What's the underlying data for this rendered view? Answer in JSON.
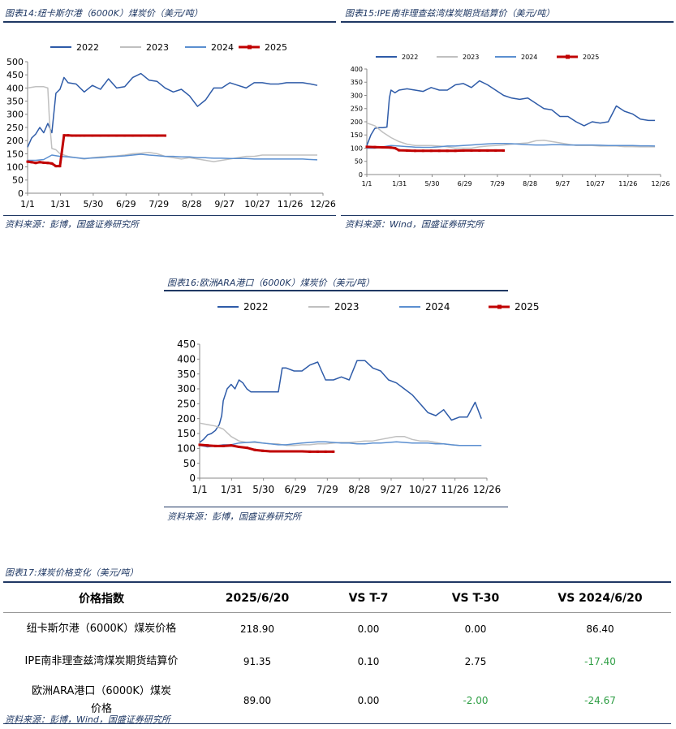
{
  "fig14": {
    "caption": "图表14:纽卡斯尔港（6000K）煤炭价（美元/吨）",
    "source": "资料来源：彭博，国盛证券研究所"
  },
  "fig15": {
    "caption": "图表15:IPE南非理查兹湾煤炭期货结算价（美元/吨）",
    "source": "资料来源：Wind，国盛证券研究所"
  },
  "fig16": {
    "caption": "图表16:欧洲ARA港口（6000K）煤炭价（美元/吨）",
    "source": "资料来源：彭博，国盛证券研究所"
  },
  "fig17": {
    "caption": "图表17:煤炭价格变化（美元/吨）",
    "source": "资料来源：彭博，Wind，国盛证券研究所",
    "headers": [
      "价格指数",
      "2025/6/20",
      "VS T-7",
      "VS T-30",
      "VS 2024/6/20"
    ],
    "rows": [
      {
        "name": "纽卡斯尔港（6000K）煤炭价格",
        "v": "218.90",
        "t7": "0.00",
        "t30": "0.00",
        "y": "86.40"
      },
      {
        "name": "IPE南非理查兹湾煤炭期货结算价",
        "v": "91.35",
        "t7": "0.10",
        "t30": "2.75",
        "y": "-17.40"
      },
      {
        "name": "欧洲ARA港口（6000K）煤炭价格",
        "v": "89.00",
        "t7": "0.00",
        "t30": "-2.00",
        "y": "-24.67"
      }
    ],
    "neg_color": "#2e9e44"
  },
  "chart_data": [
    {
      "id": "newcastle",
      "type": "line",
      "x_ticks": [
        "1/1",
        "1/31",
        "5/30",
        "6/29",
        "7/29",
        "8/28",
        "9/27",
        "10/27",
        "11/26",
        "12/26"
      ],
      "ylim": [
        0,
        500
      ],
      "y_ticks": [
        0,
        50,
        100,
        150,
        200,
        250,
        300,
        350,
        400,
        450,
        500
      ],
      "legend_position": "top",
      "series": [
        {
          "name": "2022",
          "color": "#2e5ba8",
          "x": [
            0,
            5,
            10,
            15,
            20,
            25,
            30,
            35,
            40,
            45,
            50,
            60,
            70,
            80,
            90,
            100,
            110,
            120,
            130,
            140,
            150,
            160,
            170,
            180,
            190,
            200,
            210,
            220,
            230,
            240,
            250,
            260,
            270,
            280,
            290,
            300,
            310,
            320,
            330,
            340,
            350,
            358
          ],
          "y": [
            175,
            210,
            225,
            250,
            230,
            265,
            230,
            380,
            395,
            440,
            420,
            415,
            385,
            410,
            395,
            435,
            400,
            405,
            440,
            455,
            430,
            425,
            400,
            385,
            395,
            370,
            330,
            355,
            400,
            400,
            420,
            410,
            400,
            420,
            420,
            415,
            415,
            420,
            420,
            420,
            415,
            410
          ]
        },
        {
          "name": "2023",
          "color": "#c0c0c0",
          "x": [
            0,
            10,
            20,
            25,
            27,
            30,
            35,
            40,
            50,
            60,
            70,
            80,
            90,
            100,
            110,
            120,
            130,
            140,
            150,
            160,
            170,
            180,
            190,
            200,
            210,
            220,
            230,
            240,
            250,
            260,
            270,
            280,
            290,
            300,
            310,
            320,
            330,
            340,
            350,
            358
          ],
          "y": [
            400,
            405,
            405,
            400,
            280,
            170,
            165,
            150,
            140,
            135,
            130,
            135,
            138,
            140,
            142,
            145,
            150,
            152,
            155,
            150,
            140,
            135,
            130,
            135,
            130,
            125,
            120,
            125,
            130,
            135,
            140,
            140,
            145,
            145,
            145,
            145,
            145,
            145,
            145,
            145
          ]
        },
        {
          "name": "2024",
          "color": "#5b8fd0",
          "x": [
            0,
            10,
            20,
            30,
            40,
            50,
            60,
            70,
            80,
            90,
            100,
            110,
            120,
            130,
            140,
            150,
            160,
            170,
            180,
            190,
            200,
            210,
            220,
            230,
            240,
            250,
            260,
            270,
            280,
            290,
            300,
            310,
            320,
            330,
            340,
            350,
            358
          ],
          "y": [
            125,
            125,
            128,
            145,
            140,
            138,
            135,
            132,
            134,
            135,
            138,
            140,
            142,
            145,
            148,
            145,
            143,
            140,
            140,
            138,
            138,
            135,
            135,
            133,
            133,
            132,
            132,
            132,
            130,
            130,
            130,
            130,
            130,
            130,
            130,
            128,
            127
          ]
        },
        {
          "name": "2025",
          "color": "#c00000",
          "x": [
            0,
            5,
            10,
            15,
            20,
            25,
            30,
            35,
            40,
            45,
            50,
            55,
            60,
            65,
            70,
            80,
            90,
            100,
            110,
            120,
            130,
            140,
            150,
            160,
            170
          ],
          "y": [
            120,
            118,
            115,
            118,
            116,
            115,
            113,
            103,
            103,
            220,
            220,
            219,
            219,
            219,
            219,
            219,
            219,
            219,
            219,
            219,
            219,
            219,
            219,
            219,
            219
          ]
        }
      ]
    },
    {
      "id": "richards_bay",
      "type": "line",
      "x_ticks": [
        "1/1",
        "1/31",
        "5/30",
        "6/29",
        "7/29",
        "8/28",
        "9/27",
        "10/27",
        "11/26",
        "12/26"
      ],
      "ylim": [
        0,
        400
      ],
      "y_ticks": [
        0,
        50,
        100,
        150,
        200,
        250,
        300,
        350,
        400
      ],
      "legend_position": "top",
      "series": [
        {
          "name": "2022",
          "color": "#2e5ba8",
          "x": [
            0,
            5,
            10,
            15,
            20,
            25,
            28,
            30,
            35,
            40,
            50,
            60,
            70,
            80,
            90,
            100,
            110,
            120,
            130,
            140,
            150,
            160,
            170,
            180,
            190,
            200,
            210,
            220,
            230,
            240,
            250,
            260,
            270,
            280,
            290,
            300,
            310,
            320,
            330,
            340,
            350,
            358
          ],
          "y": [
            110,
            150,
            175,
            178,
            178,
            180,
            290,
            320,
            310,
            320,
            325,
            320,
            315,
            330,
            320,
            320,
            340,
            345,
            330,
            355,
            340,
            320,
            300,
            290,
            285,
            290,
            270,
            250,
            245,
            220,
            220,
            200,
            185,
            200,
            195,
            200,
            260,
            240,
            230,
            210,
            205,
            205
          ]
        },
        {
          "name": "2023",
          "color": "#c0c0c0",
          "x": [
            0,
            10,
            20,
            30,
            40,
            50,
            60,
            70,
            80,
            90,
            100,
            110,
            120,
            130,
            140,
            150,
            160,
            170,
            180,
            190,
            200,
            210,
            220,
            230,
            240,
            250,
            260,
            270,
            280,
            290,
            300,
            310,
            320,
            330,
            340,
            350,
            358
          ],
          "y": [
            195,
            185,
            160,
            140,
            125,
            115,
            110,
            110,
            110,
            108,
            105,
            100,
            100,
            100,
            105,
            108,
            110,
            112,
            115,
            118,
            120,
            128,
            130,
            125,
            120,
            115,
            110,
            110,
            110,
            108,
            108,
            108,
            106,
            106,
            105,
            105,
            105
          ]
        },
        {
          "name": "2024",
          "color": "#5b8fd0",
          "x": [
            0,
            10,
            20,
            30,
            40,
            50,
            60,
            70,
            80,
            90,
            100,
            110,
            120,
            130,
            140,
            150,
            160,
            170,
            180,
            190,
            200,
            210,
            220,
            230,
            240,
            250,
            260,
            270,
            280,
            290,
            300,
            310,
            320,
            330,
            340,
            350,
            358
          ],
          "y": [
            100,
            100,
            105,
            110,
            108,
            106,
            104,
            103,
            103,
            105,
            108,
            108,
            110,
            112,
            114,
            116,
            118,
            118,
            117,
            115,
            113,
            112,
            112,
            113,
            113,
            112,
            112,
            112,
            112,
            111,
            110,
            110,
            110,
            110,
            109,
            109,
            108
          ]
        },
        {
          "name": "2025",
          "color": "#c00000",
          "x": [
            0,
            10,
            20,
            30,
            35,
            40,
            50,
            60,
            70,
            80,
            90,
            100,
            110,
            120,
            130,
            140,
            150,
            160,
            170
          ],
          "y": [
            105,
            104,
            103,
            102,
            100,
            92,
            91,
            90,
            90,
            90,
            90,
            90,
            90,
            91,
            91,
            91,
            91,
            91,
            91
          ]
        }
      ]
    },
    {
      "id": "ara",
      "type": "line",
      "x_ticks": [
        "1/1",
        "1/31",
        "5/30",
        "6/29",
        "7/29",
        "8/28",
        "9/27",
        "10/27",
        "11/26",
        "12/26"
      ],
      "ylim": [
        0,
        450
      ],
      "y_ticks": [
        0,
        50,
        100,
        150,
        200,
        250,
        300,
        350,
        400,
        450
      ],
      "legend_position": "top",
      "series": [
        {
          "name": "2022",
          "color": "#2e5ba8",
          "x": [
            0,
            5,
            10,
            15,
            20,
            25,
            28,
            30,
            35,
            40,
            45,
            50,
            55,
            60,
            65,
            70,
            75,
            80,
            90,
            100,
            105,
            110,
            120,
            130,
            140,
            150,
            160,
            170,
            180,
            190,
            200,
            210,
            220,
            230,
            240,
            250,
            260,
            270,
            280,
            290,
            300,
            310,
            320,
            330,
            340,
            350,
            358
          ],
          "y": [
            120,
            130,
            145,
            150,
            160,
            180,
            210,
            260,
            300,
            315,
            300,
            330,
            320,
            300,
            290,
            290,
            290,
            290,
            290,
            290,
            370,
            370,
            360,
            360,
            380,
            390,
            330,
            330,
            340,
            330,
            395,
            395,
            370,
            360,
            330,
            320,
            300,
            280,
            250,
            220,
            210,
            230,
            195,
            205,
            205,
            255,
            200
          ]
        },
        {
          "name": "2023",
          "color": "#c0c0c0",
          "x": [
            0,
            10,
            20,
            30,
            40,
            50,
            60,
            70,
            80,
            90,
            100,
            110,
            120,
            130,
            140,
            150,
            160,
            170,
            180,
            190,
            200,
            210,
            220,
            230,
            240,
            250,
            260,
            270,
            280,
            290,
            300,
            310,
            320,
            330,
            340,
            350,
            358
          ],
          "y": [
            185,
            180,
            175,
            165,
            140,
            125,
            120,
            120,
            118,
            115,
            115,
            110,
            110,
            112,
            112,
            115,
            115,
            118,
            120,
            120,
            122,
            125,
            125,
            130,
            135,
            140,
            140,
            130,
            125,
            125,
            120,
            115,
            112,
            110,
            110,
            110,
            110
          ]
        },
        {
          "name": "2024",
          "color": "#5b8fd0",
          "x": [
            0,
            10,
            20,
            30,
            40,
            50,
            60,
            70,
            80,
            90,
            100,
            110,
            120,
            130,
            140,
            150,
            160,
            170,
            180,
            190,
            200,
            210,
            220,
            230,
            240,
            250,
            260,
            270,
            280,
            290,
            300,
            310,
            320,
            330,
            340,
            350,
            358
          ],
          "y": [
            110,
            105,
            108,
            112,
            112,
            118,
            120,
            122,
            118,
            115,
            112,
            112,
            115,
            118,
            120,
            122,
            122,
            120,
            118,
            118,
            115,
            115,
            118,
            118,
            120,
            122,
            120,
            118,
            118,
            118,
            115,
            115,
            112,
            110,
            110,
            110,
            110
          ]
        },
        {
          "name": "2025",
          "color": "#c00000",
          "x": [
            0,
            10,
            20,
            30,
            40,
            50,
            60,
            70,
            80,
            90,
            100,
            110,
            120,
            130,
            140,
            150,
            160,
            170
          ],
          "y": [
            112,
            110,
            108,
            108,
            110,
            105,
            102,
            95,
            92,
            90,
            90,
            90,
            90,
            90,
            89,
            89,
            89,
            89
          ]
        }
      ]
    }
  ]
}
